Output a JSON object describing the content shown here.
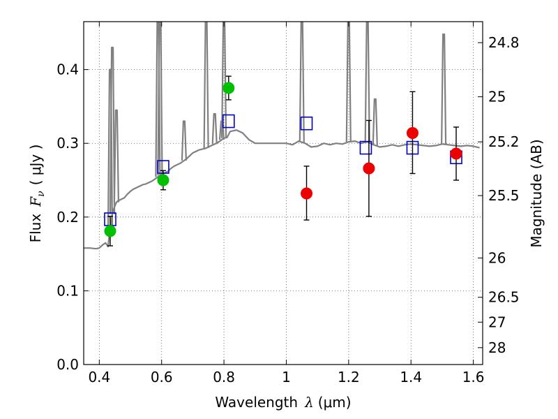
{
  "chart_data": {
    "type": "scatter",
    "title": "",
    "xlabel": "Wavelength",
    "xlabel_symbol": "λ",
    "xlabel_unit": "(μm)",
    "ylabel": "Flux",
    "ylabel_symbol": "F",
    "ylabel_subscript": "ν",
    "ylabel_unit": "( μJy )",
    "y2label": "Magnitude (AB)",
    "xlim": [
      0.35,
      1.63
    ],
    "ylim": [
      0.0,
      0.465
    ],
    "grid": true,
    "x_ticks": [
      0.4,
      0.6,
      0.8,
      1.0,
      1.2,
      1.4,
      1.6
    ],
    "x_tick_labels": [
      "0.4",
      "0.6",
      "0.8",
      "1",
      "1.2",
      "1.4",
      "1.6"
    ],
    "y_ticks": [
      0.0,
      0.1,
      0.2,
      0.3,
      0.4
    ],
    "y_tick_labels": [
      "0.0",
      "0.1",
      "0.2",
      "0.3",
      "0.4"
    ],
    "y2_ticks": [
      {
        "label": "24.8",
        "flux": 0.4365
      },
      {
        "label": "25",
        "flux": 0.3631
      },
      {
        "label": "25.2",
        "flux": 0.302
      },
      {
        "label": "25.5",
        "flux": 0.2291
      },
      {
        "label": "26",
        "flux": 0.1445
      },
      {
        "label": "26.5",
        "flux": 0.0912
      },
      {
        "label": "27",
        "flux": 0.0575
      },
      {
        "label": "28",
        "flux": 0.0229
      }
    ],
    "colors": {
      "model": "#808080",
      "model_photometry": "#0000cc",
      "optical_obs": "#00c000",
      "nir_obs": "#ee0000",
      "errorbar": "#000000"
    },
    "series": [
      {
        "name": "model spectrum",
        "kind": "line",
        "x": [
          0.35,
          0.37,
          0.39,
          0.4,
          0.41,
          0.42,
          0.428,
          0.432,
          0.436,
          0.44,
          0.445,
          0.45,
          0.455,
          0.46,
          0.47,
          0.48,
          0.49,
          0.5,
          0.51,
          0.52,
          0.53,
          0.54,
          0.55,
          0.56,
          0.57,
          0.58,
          0.59,
          0.6,
          0.61,
          0.62,
          0.63,
          0.64,
          0.65,
          0.66,
          0.67,
          0.68,
          0.69,
          0.7,
          0.72,
          0.74,
          0.76,
          0.78,
          0.8,
          0.81,
          0.82,
          0.84,
          0.86,
          0.88,
          0.9,
          0.92,
          0.94,
          0.96,
          0.98,
          1.0,
          1.02,
          1.04,
          1.06,
          1.08,
          1.1,
          1.12,
          1.14,
          1.16,
          1.18,
          1.2,
          1.22,
          1.24,
          1.26,
          1.28,
          1.3,
          1.32,
          1.34,
          1.36,
          1.38,
          1.4,
          1.42,
          1.44,
          1.46,
          1.48,
          1.5,
          1.52,
          1.54,
          1.56,
          1.58,
          1.6,
          1.62
        ],
        "y": [
          0.158,
          0.158,
          0.157,
          0.158,
          0.162,
          0.165,
          0.16,
          0.175,
          0.185,
          0.2,
          0.21,
          0.215,
          0.22,
          0.222,
          0.224,
          0.226,
          0.231,
          0.235,
          0.238,
          0.24,
          0.242,
          0.244,
          0.245,
          0.247,
          0.249,
          0.252,
          0.255,
          0.258,
          0.26,
          0.262,
          0.266,
          0.269,
          0.271,
          0.273,
          0.276,
          0.279,
          0.283,
          0.287,
          0.291,
          0.293,
          0.297,
          0.301,
          0.307,
          0.308,
          0.316,
          0.318,
          0.314,
          0.305,
          0.3,
          0.3,
          0.3,
          0.3,
          0.3,
          0.3,
          0.298,
          0.303,
          0.3,
          0.295,
          0.296,
          0.3,
          0.298,
          0.3,
          0.299,
          0.302,
          0.303,
          0.3,
          0.302,
          0.298,
          0.295,
          0.296,
          0.298,
          0.296,
          0.298,
          0.299,
          0.298,
          0.297,
          0.296,
          0.297,
          0.299,
          0.298,
          0.297,
          0.296,
          0.297,
          0.296,
          0.294
        ]
      },
      {
        "name": "model emission lines",
        "kind": "lines",
        "lines": [
          {
            "x": 0.435,
            "peak": 0.4
          },
          {
            "x": 0.442,
            "peak": 0.43
          },
          {
            "x": 0.455,
            "peak": 0.345
          },
          {
            "x": 0.588,
            "peak": 0.465
          },
          {
            "x": 0.595,
            "peak": 0.465
          },
          {
            "x": 0.672,
            "peak": 0.33
          },
          {
            "x": 0.743,
            "peak": 0.465
          },
          {
            "x": 0.77,
            "peak": 0.34
          },
          {
            "x": 0.793,
            "peak": 0.33
          },
          {
            "x": 0.8,
            "peak": 0.465
          },
          {
            "x": 1.05,
            "peak": 0.465
          },
          {
            "x": 1.2,
            "peak": 0.465
          },
          {
            "x": 1.26,
            "peak": 0.465
          },
          {
            "x": 1.285,
            "peak": 0.36
          },
          {
            "x": 1.505,
            "peak": 0.448
          }
        ]
      },
      {
        "name": "model photometry",
        "kind": "open-square",
        "x": [
          0.435,
          0.605,
          0.815,
          1.065,
          1.255,
          1.405,
          1.545
        ],
        "y": [
          0.197,
          0.268,
          0.33,
          0.327,
          0.294,
          0.294,
          0.281
        ]
      },
      {
        "name": "optical observations",
        "kind": "filled-circle",
        "x": [
          0.435,
          0.605,
          0.815
        ],
        "y": [
          0.181,
          0.25,
          0.375
        ],
        "yerr_low": [
          0.02,
          0.013,
          0.016
        ],
        "yerr_high": [
          0.02,
          0.013,
          0.016
        ]
      },
      {
        "name": "near-IR observations",
        "kind": "filled-circle",
        "x": [
          1.065,
          1.265,
          1.405,
          1.545
        ],
        "y": [
          0.232,
          0.266,
          0.314,
          0.286
        ],
        "yerr_low": [
          0.036,
          0.065,
          0.055,
          0.036
        ],
        "yerr_high": [
          0.037,
          0.065,
          0.056,
          0.036
        ]
      }
    ]
  }
}
